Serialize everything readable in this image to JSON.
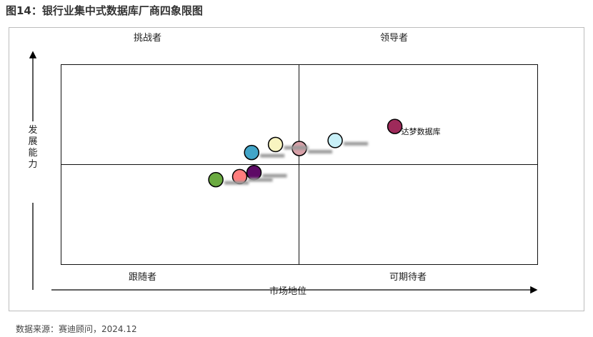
{
  "title": "图14：银行业集中式数据库厂商四象限图",
  "source": "数据来源：赛迪顾问，2024.12",
  "chart_data": {
    "type": "scatter",
    "title": "图14：银行业集中式数据库厂商四象限图",
    "xlabel": "市场地位",
    "ylabel": "发展能力",
    "quadrants": {
      "top_left": "挑战者",
      "top_right": "领导者",
      "bottom_left": "跟随者",
      "bottom_right": "可期待者"
    },
    "xlim": [
      0,
      10
    ],
    "ylim": [
      0,
      10
    ],
    "grid": false,
    "points": [
      {
        "label": "达梦数据库",
        "x": 7.0,
        "y": 6.9,
        "color": "#9e2a5a",
        "label_blurred": false
      },
      {
        "label": "",
        "x": 5.75,
        "y": 6.2,
        "color": "#c8f0f8",
        "label_blurred": true
      },
      {
        "label": "",
        "x": 5.0,
        "y": 5.8,
        "color": "#d9a0a8",
        "label_blurred": true
      },
      {
        "label": "",
        "x": 4.5,
        "y": 6.0,
        "color": "#f8f4c0",
        "label_blurred": true
      },
      {
        "label": "",
        "x": 4.0,
        "y": 5.6,
        "color": "#42a5c8",
        "label_blurred": true
      },
      {
        "label": "",
        "x": 4.05,
        "y": 4.6,
        "color": "#5e0a66",
        "label_blurred": true
      },
      {
        "label": "",
        "x": 3.75,
        "y": 4.4,
        "color": "#ff7d7d",
        "label_blurred": true
      },
      {
        "label": "",
        "x": 3.25,
        "y": 4.25,
        "color": "#6aaa40",
        "label_blurred": true
      }
    ]
  }
}
